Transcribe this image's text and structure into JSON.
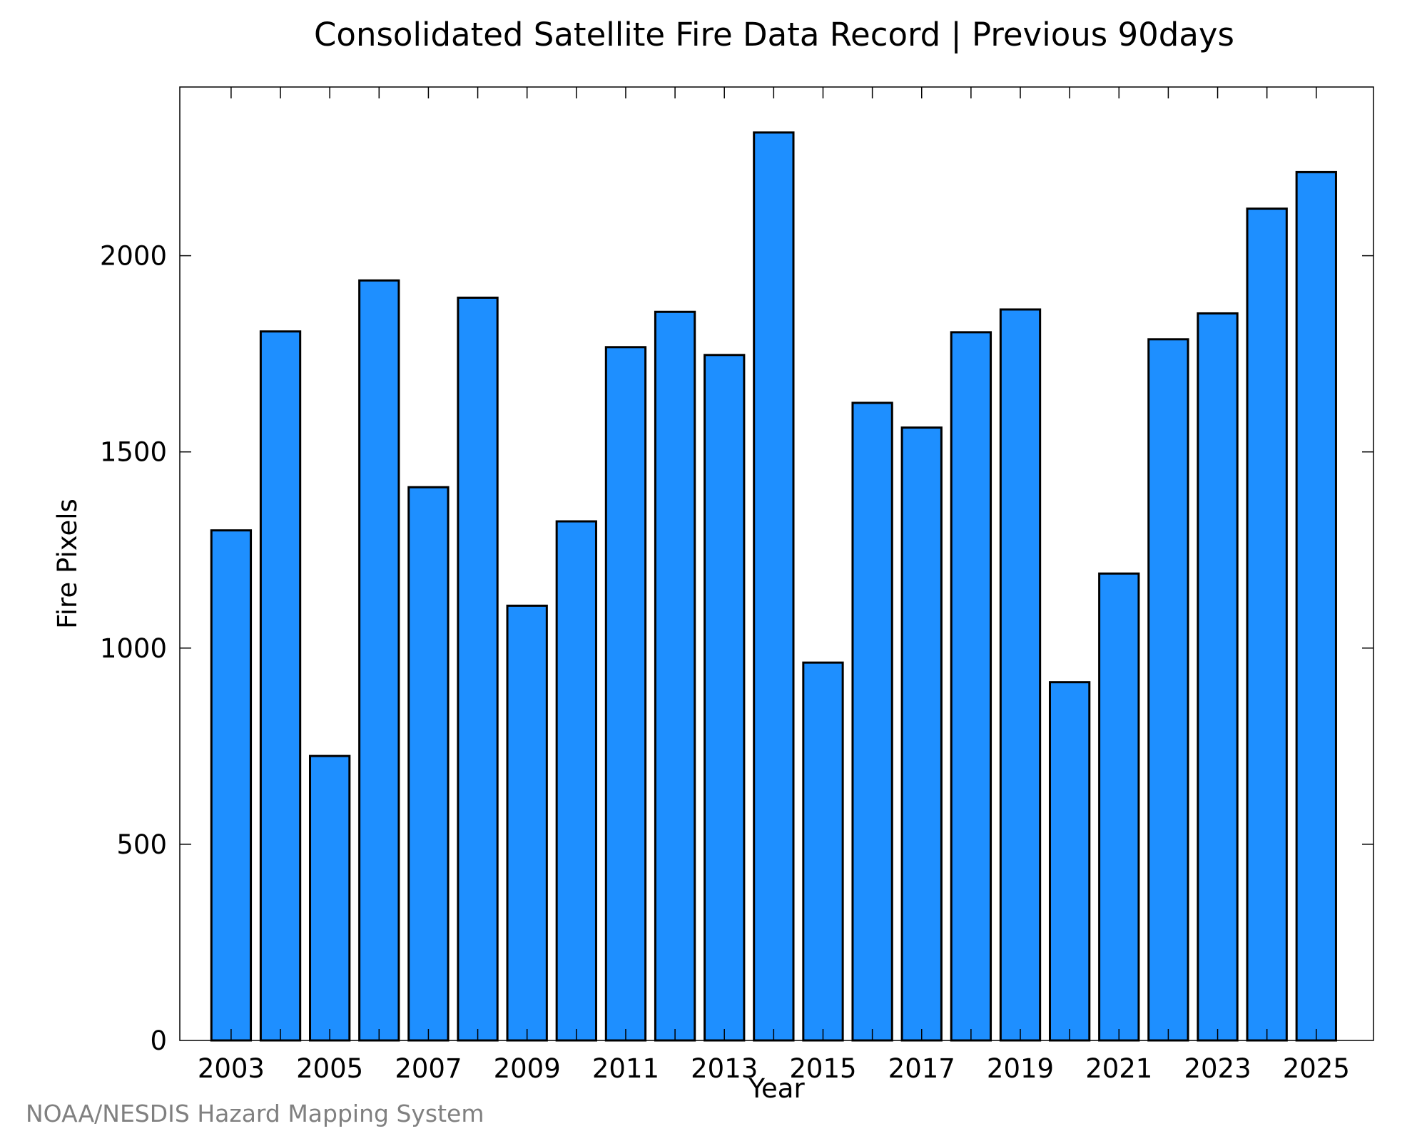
{
  "chart_data": {
    "type": "bar",
    "title": "Consolidated Satellite Fire Data Record | Previous 90days",
    "xlabel": "Year",
    "ylabel": "Fire Pixels",
    "categories": [
      "2003",
      "2004",
      "2005",
      "2006",
      "2007",
      "2008",
      "2009",
      "2010",
      "2011",
      "2012",
      "2013",
      "2014",
      "2015",
      "2016",
      "2017",
      "2018",
      "2019",
      "2020",
      "2021",
      "2022",
      "2023",
      "2024",
      "2025"
    ],
    "x_tick_labels": [
      "2003",
      "2005",
      "2007",
      "2009",
      "2011",
      "2013",
      "2015",
      "2017",
      "2019",
      "2021",
      "2023",
      "2025"
    ],
    "values": [
      1300,
      1807,
      725,
      1937,
      1410,
      1893,
      1108,
      1323,
      1767,
      1857,
      1747,
      2314,
      963,
      1625,
      1562,
      1805,
      1863,
      913,
      1190,
      1787,
      1853,
      2120,
      2213
    ],
    "y_ticks": [
      0,
      500,
      1000,
      1500,
      2000
    ],
    "ylim": [
      0,
      2430
    ],
    "grid": false,
    "legend": "none",
    "bar_color": "#1e8fff",
    "bar_edge_color": "#000000"
  },
  "credit": "NOAA/NESDIS Hazard Mapping System"
}
